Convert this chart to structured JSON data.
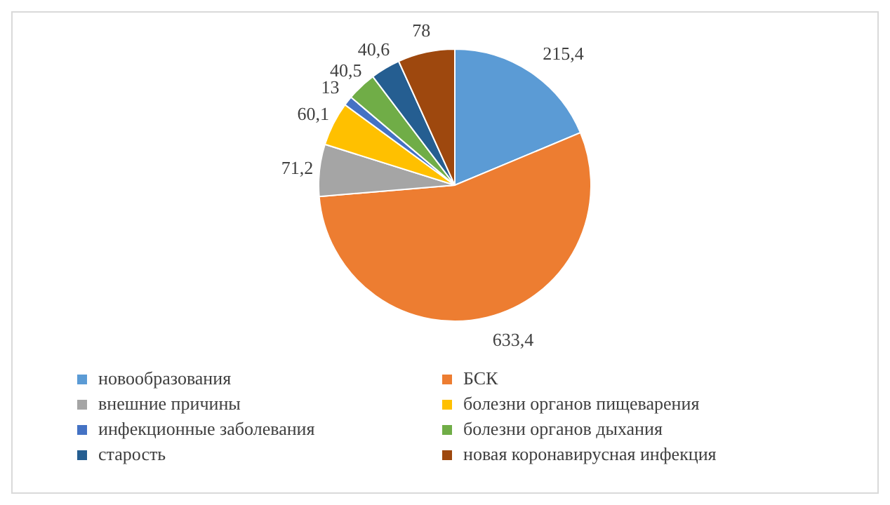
{
  "chart_data": {
    "type": "pie",
    "categories": [
      "новообразования",
      "БСК",
      "внешние причины",
      "болезни органов пищеварения",
      "инфекционные заболевания",
      "болезни органов дыхания",
      "старость",
      "новая коронавирусная инфекция"
    ],
    "values": [
      215.4,
      633.4,
      71.2,
      60.1,
      13,
      40.5,
      40.6,
      78
    ],
    "value_labels": [
      "215,4",
      "633,4",
      "71,2",
      "60,1",
      "13",
      "40,5",
      "40,6",
      "78"
    ],
    "colors": [
      "#5b9bd5",
      "#ed7d31",
      "#a5a5a5",
      "#ffc000",
      "#4472c4",
      "#70ad47",
      "#255e91",
      "#9e480e"
    ],
    "legend": "bottom"
  }
}
